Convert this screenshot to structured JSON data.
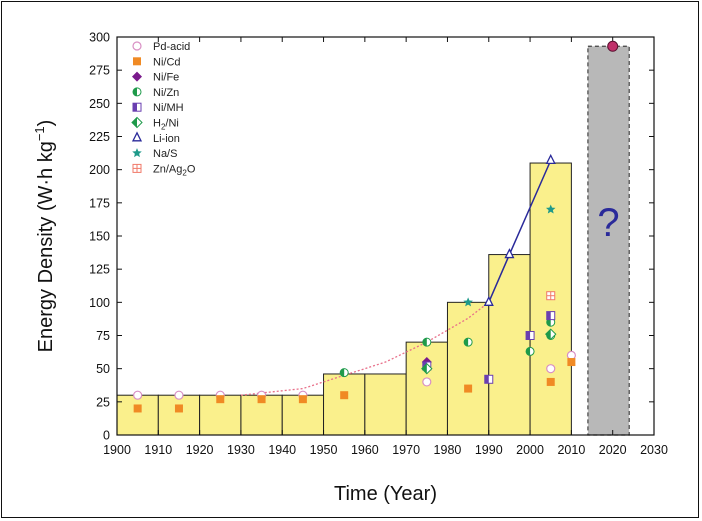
{
  "chart_data": {
    "type": "bar",
    "xlabel": "Time (Year)",
    "ylabel_main": "Energy Density (W·h kg",
    "ylabel_sup": "−1",
    "ylabel_tail": ")",
    "xlim": [
      1900,
      2030
    ],
    "ylim": [
      0,
      300
    ],
    "xticks": [
      1900,
      1910,
      1920,
      1930,
      1940,
      1950,
      1960,
      1970,
      1980,
      1990,
      2000,
      2010,
      2020,
      2030
    ],
    "yticks": [
      0,
      25,
      50,
      75,
      100,
      125,
      150,
      175,
      200,
      225,
      250,
      275,
      300
    ],
    "bars": [
      {
        "x0": 1900,
        "x1": 1910,
        "value": 30
      },
      {
        "x0": 1910,
        "x1": 1920,
        "value": 30
      },
      {
        "x0": 1920,
        "x1": 1930,
        "value": 30
      },
      {
        "x0": 1930,
        "x1": 1940,
        "value": 30
      },
      {
        "x0": 1940,
        "x1": 1950,
        "value": 30
      },
      {
        "x0": 1950,
        "x1": 1960,
        "value": 46
      },
      {
        "x0": 1960,
        "x1": 1970,
        "value": 46
      },
      {
        "x0": 1970,
        "x1": 1980,
        "value": 70
      },
      {
        "x0": 1980,
        "x1": 1990,
        "value": 100
      },
      {
        "x0": 1990,
        "x1": 2000,
        "value": 136
      },
      {
        "x0": 2000,
        "x1": 2010,
        "value": 205
      }
    ],
    "future_bar": {
      "x0": 2014,
      "x1": 2024,
      "value": 293,
      "label": "?"
    },
    "future_point": {
      "x": 2020,
      "y": 293
    },
    "series": [
      {
        "name": "Pd-acid",
        "name_sub": "",
        "name_tail": "",
        "marker": "open-circle",
        "color": "#d98fc4",
        "points": [
          [
            1905,
            30
          ],
          [
            1915,
            30
          ],
          [
            1925,
            30
          ],
          [
            1935,
            30
          ],
          [
            1945,
            30
          ],
          [
            1975,
            40
          ],
          [
            2005,
            50
          ],
          [
            2010,
            60
          ]
        ]
      },
      {
        "name": "Ni/Cd",
        "name_sub": "",
        "name_tail": "",
        "marker": "square",
        "color": "#f08a24",
        "points": [
          [
            1905,
            20
          ],
          [
            1915,
            20
          ],
          [
            1925,
            27
          ],
          [
            1935,
            27
          ],
          [
            1945,
            27
          ],
          [
            1955,
            30
          ],
          [
            1985,
            35
          ],
          [
            2005,
            40
          ],
          [
            2010,
            55
          ]
        ]
      },
      {
        "name": "Ni/Fe",
        "name_sub": "",
        "name_tail": "",
        "marker": "diamond",
        "color": "#7a1a8c",
        "points": [
          [
            1975,
            55
          ]
        ]
      },
      {
        "name": "Ni/Zn",
        "name_sub": "",
        "name_tail": "",
        "marker": "half-circle",
        "color": "#1e9a4a",
        "points": [
          [
            1955,
            47
          ],
          [
            1975,
            70
          ],
          [
            1985,
            70
          ],
          [
            2000,
            63
          ],
          [
            2005,
            85
          ],
          [
            2005,
            75
          ]
        ]
      },
      {
        "name": "Ni/MH",
        "name_sub": "",
        "name_tail": "",
        "marker": "half-square",
        "color": "#6a3fb0",
        "points": [
          [
            1975,
            52
          ],
          [
            1990,
            42
          ],
          [
            2000,
            75
          ],
          [
            2005,
            90
          ]
        ]
      },
      {
        "name": "H",
        "name_sub": "2",
        "name_tail": "/Ni",
        "marker": "half-diamond",
        "color": "#1e9a4a",
        "points": [
          [
            1975,
            50
          ],
          [
            2005,
            76
          ]
        ]
      },
      {
        "name": "Li-ion",
        "name_sub": "",
        "name_tail": "",
        "marker": "triangle",
        "color": "#2a2a9a",
        "points": [
          [
            1990,
            100
          ],
          [
            1995,
            136
          ],
          [
            2005,
            207
          ]
        ]
      },
      {
        "name": "Na/S",
        "name_sub": "",
        "name_tail": "",
        "marker": "star",
        "color": "#1f9a8a",
        "points": [
          [
            1985,
            100
          ],
          [
            2005,
            170
          ]
        ]
      },
      {
        "name": "Zn/Ag",
        "name_sub": "2",
        "name_tail": "O",
        "marker": "boxed-cross",
        "color": "#f07a6a",
        "points": [
          [
            2005,
            105
          ]
        ]
      }
    ],
    "trend_line": {
      "style": "dotted",
      "color": "#e8708a",
      "points": [
        [
          1930,
          30
        ],
        [
          1945,
          35
        ],
        [
          1955,
          45
        ],
        [
          1965,
          55
        ],
        [
          1975,
          70
        ],
        [
          1985,
          88
        ],
        [
          1990,
          100
        ]
      ]
    },
    "liion_line": {
      "color": "#2a2a9a",
      "points": [
        [
          1990,
          100
        ],
        [
          1995,
          136
        ],
        [
          2005,
          207
        ]
      ]
    },
    "legend_position": "top-left",
    "bar_fill": "#faf08c",
    "future_fill": "#b8b8b8",
    "future_label_color": "#2a2a9a",
    "grid": false
  }
}
